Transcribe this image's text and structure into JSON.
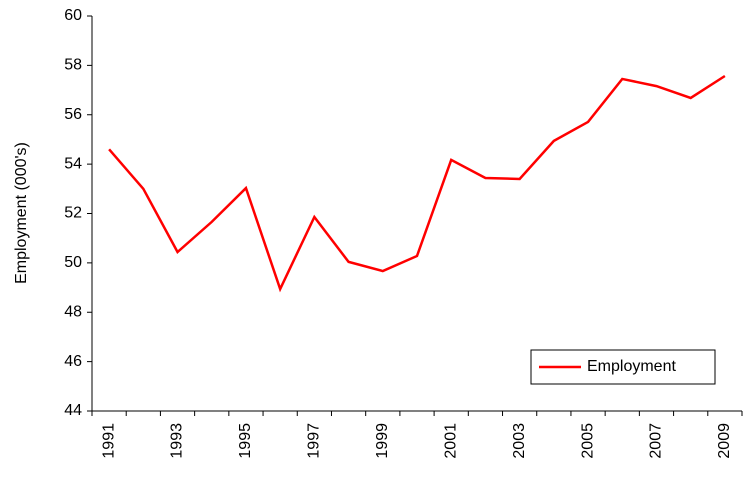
{
  "chart_data": {
    "type": "line",
    "y_label": "Employment (000's)",
    "categories": [
      "1991",
      null,
      "1993",
      null,
      "1995",
      null,
      "1997",
      null,
      "1999",
      null,
      "2001",
      null,
      "2003",
      null,
      "2005",
      null,
      "2007",
      null,
      "2009"
    ],
    "series": [
      {
        "name": "Employment",
        "color": "#ff0000",
        "values": [
          54.6,
          53.0,
          50.44,
          51.66,
          53.03,
          48.94,
          51.86,
          50.04,
          49.67,
          50.28,
          54.17,
          53.44,
          53.4,
          54.94,
          55.71,
          57.45,
          57.16,
          56.68,
          57.57
        ]
      }
    ],
    "ylim": [
      44,
      60
    ],
    "yticks": [
      44,
      46,
      48,
      50,
      52,
      54,
      56,
      58,
      60
    ],
    "grid": false,
    "legend": "lower right"
  }
}
